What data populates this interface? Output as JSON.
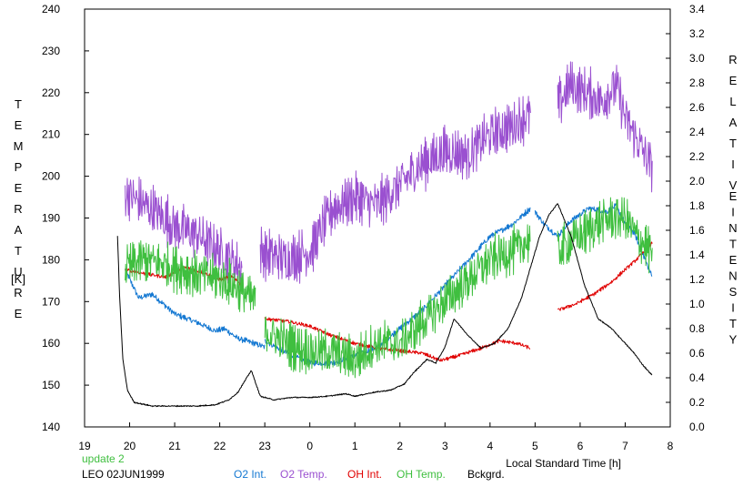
{
  "chart_data": {
    "type": "line",
    "title": "",
    "xlabel": "Local Standard Time [h]",
    "ylabel_left": [
      "T",
      "E",
      "M",
      "P",
      "E",
      "R",
      "A",
      "T",
      "U",
      "R",
      "E",
      "[K]"
    ],
    "ylabel_right": [
      "R",
      "E",
      "L",
      "A",
      "T",
      "I",
      "V",
      "E",
      "I",
      "N",
      "T",
      "E",
      "N",
      "S",
      "I",
      "T",
      "Y"
    ],
    "x_range": [
      19,
      32
    ],
    "x_ticks": [
      19,
      20,
      21,
      22,
      23,
      24,
      25,
      26,
      27,
      28,
      29,
      30,
      31,
      32
    ],
    "x_tick_labels": [
      "19",
      "20",
      "21",
      "22",
      "23",
      "0",
      "1",
      "2",
      "3",
      "4",
      "5",
      "6",
      "7",
      "8"
    ],
    "y_left_range": [
      140,
      240
    ],
    "y_left_ticks": [
      140,
      150,
      160,
      170,
      180,
      190,
      200,
      210,
      220,
      230,
      240
    ],
    "y_right_range": [
      0.0,
      3.4
    ],
    "y_right_ticks": [
      "0.0",
      "0.2",
      "0.4",
      "0.6",
      "0.8",
      "1.0",
      "1.2",
      "1.4",
      "1.6",
      "1.8",
      "2.0",
      "2.2",
      "2.4",
      "2.6",
      "2.8",
      "3.0",
      "3.2",
      "3.4"
    ],
    "grid": false,
    "legend_position": "bottom",
    "series": [
      {
        "name": "O2 Int.",
        "color": "#1478d2",
        "axis": "right",
        "noise": 0.04,
        "segments": [
          {
            "x": [
              19.9,
              20.2,
              20.5,
              21.0,
              21.5,
              21.9,
              22.1,
              22.4,
              22.6,
              23.0
            ],
            "y": [
              1.28,
              1.05,
              1.08,
              0.92,
              0.85,
              0.78,
              0.8,
              0.72,
              0.7,
              0.65
            ]
          },
          {
            "x": [
              23.0,
              23.5,
              24.0,
              24.5,
              25.0,
              25.5,
              26.0,
              26.5,
              27.0,
              27.5,
              28.0,
              28.5,
              28.9
            ],
            "y": [
              0.7,
              0.6,
              0.52,
              0.52,
              0.58,
              0.65,
              0.8,
              0.95,
              1.15,
              1.35,
              1.55,
              1.65,
              1.78
            ]
          },
          {
            "x": [
              29.0,
              29.2,
              29.5,
              29.8,
              30.2,
              30.6,
              30.8,
              31.0,
              31.2,
              31.4,
              31.6
            ],
            "y": [
              1.75,
              1.65,
              1.55,
              1.68,
              1.78,
              1.75,
              1.8,
              1.65,
              1.58,
              1.4,
              1.22
            ]
          }
        ]
      },
      {
        "name": "O2 Temp.",
        "color": "#9a50d0",
        "axis": "left",
        "noise": 10,
        "segments": [
          {
            "x": [
              19.9,
              20.5,
              21.0,
              21.5,
              22.0,
              22.5
            ],
            "y": [
              196,
              192,
              188,
              186,
              182,
              178
            ]
          },
          {
            "x": [
              22.9,
              23.5,
              24.0,
              24.5,
              25.0,
              25.5,
              26.0,
              26.5,
              27.0,
              27.5,
              28.0,
              28.5,
              28.9
            ],
            "y": [
              182,
              180,
              182,
              192,
              195,
              193,
              198,
              203,
              206,
              205,
              210,
              212,
              215
            ]
          },
          {
            "x": [
              29.5,
              29.8,
              30.1,
              30.5,
              30.8,
              31.0,
              31.3,
              31.6
            ],
            "y": [
              217,
              222,
              220,
              218,
              222,
              214,
              208,
              202
            ]
          }
        ]
      },
      {
        "name": "OH Int.",
        "color": "#e00000",
        "axis": "right",
        "noise": 0.025,
        "segments": [
          {
            "x": [
              19.9,
              20.3,
              20.8,
              21.2,
              21.6,
              22.0,
              22.3,
              22.5
            ],
            "y": [
              1.28,
              1.25,
              1.22,
              1.3,
              1.26,
              1.2,
              1.22,
              1.15
            ]
          },
          {
            "x": [
              23.0,
              23.5,
              24.0,
              24.5,
              25.0,
              25.5,
              26.0,
              26.5,
              26.9,
              27.3,
              27.8,
              28.2,
              28.6,
              28.9
            ],
            "y": [
              0.88,
              0.86,
              0.82,
              0.74,
              0.68,
              0.64,
              0.62,
              0.6,
              0.54,
              0.58,
              0.64,
              0.7,
              0.68,
              0.64
            ]
          },
          {
            "x": [
              29.5,
              29.9,
              30.3,
              30.7,
              31.0,
              31.3,
              31.6
            ],
            "y": [
              0.95,
              1.0,
              1.08,
              1.18,
              1.28,
              1.38,
              1.5
            ]
          }
        ]
      },
      {
        "name": "OH Temp.",
        "color": "#3fbf3f",
        "axis": "left",
        "noise": 9,
        "segments": [
          {
            "x": [
              19.9,
              20.3,
              20.8,
              21.3,
              21.8,
              22.3,
              22.8
            ],
            "y": [
              178,
              180,
              179,
              177,
              176,
              174,
              170
            ]
          },
          {
            "x": [
              23.0,
              23.5,
              24.0,
              24.5,
              25.0,
              25.5,
              26.0,
              26.5,
              27.0,
              27.5,
              28.0,
              28.5,
              28.9
            ],
            "y": [
              163,
              160,
              158,
              158,
              156,
              160,
              160,
              165,
              170,
              175,
              180,
              182,
              185
            ]
          },
          {
            "x": [
              29.5,
              29.9,
              30.3,
              30.7,
              31.0,
              31.3,
              31.6
            ],
            "y": [
              182,
              185,
              188,
              190,
              190,
              185,
              182
            ]
          }
        ]
      },
      {
        "name": "Bckgrd.",
        "color": "#000000",
        "axis": "right",
        "noise": 0.008,
        "segments": [
          {
            "x": [
              19.73,
              19.78,
              19.85,
              19.95,
              20.1,
              20.5,
              21.0,
              21.5,
              21.9,
              22.2,
              22.4,
              22.6,
              22.7,
              22.9,
              23.2,
              23.6,
              24.0,
              24.4,
              24.8,
              25.0,
              25.4,
              25.8,
              26.1,
              26.3,
              26.6,
              26.8,
              27.0,
              27.2,
              27.5,
              27.8,
              28.1,
              28.4,
              28.7,
              28.9,
              29.1,
              29.3,
              29.5,
              29.8,
              30.1,
              30.4,
              30.7,
              31.0,
              31.2,
              31.4,
              31.6
            ],
            "y": [
              1.55,
              1.05,
              0.55,
              0.3,
              0.2,
              0.17,
              0.17,
              0.17,
              0.18,
              0.22,
              0.28,
              0.4,
              0.46,
              0.25,
              0.22,
              0.24,
              0.24,
              0.25,
              0.27,
              0.25,
              0.28,
              0.3,
              0.35,
              0.44,
              0.55,
              0.52,
              0.65,
              0.88,
              0.75,
              0.64,
              0.68,
              0.8,
              1.05,
              1.3,
              1.55,
              1.72,
              1.82,
              1.55,
              1.15,
              0.88,
              0.8,
              0.68,
              0.6,
              0.5,
              0.42
            ]
          }
        ]
      }
    ]
  },
  "footer": {
    "update_label": "update 2",
    "dataset_label": "LEO 02JUN1999",
    "legend": [
      {
        "label": "O2 Int.",
        "color": "#1478d2"
      },
      {
        "label": "O2 Temp.",
        "color": "#9a50d0"
      },
      {
        "label": "OH Int.",
        "color": "#e00000"
      },
      {
        "label": "OH Temp.",
        "color": "#3fbf3f"
      },
      {
        "label": "Bckgrd.",
        "color": "#000000"
      }
    ]
  }
}
